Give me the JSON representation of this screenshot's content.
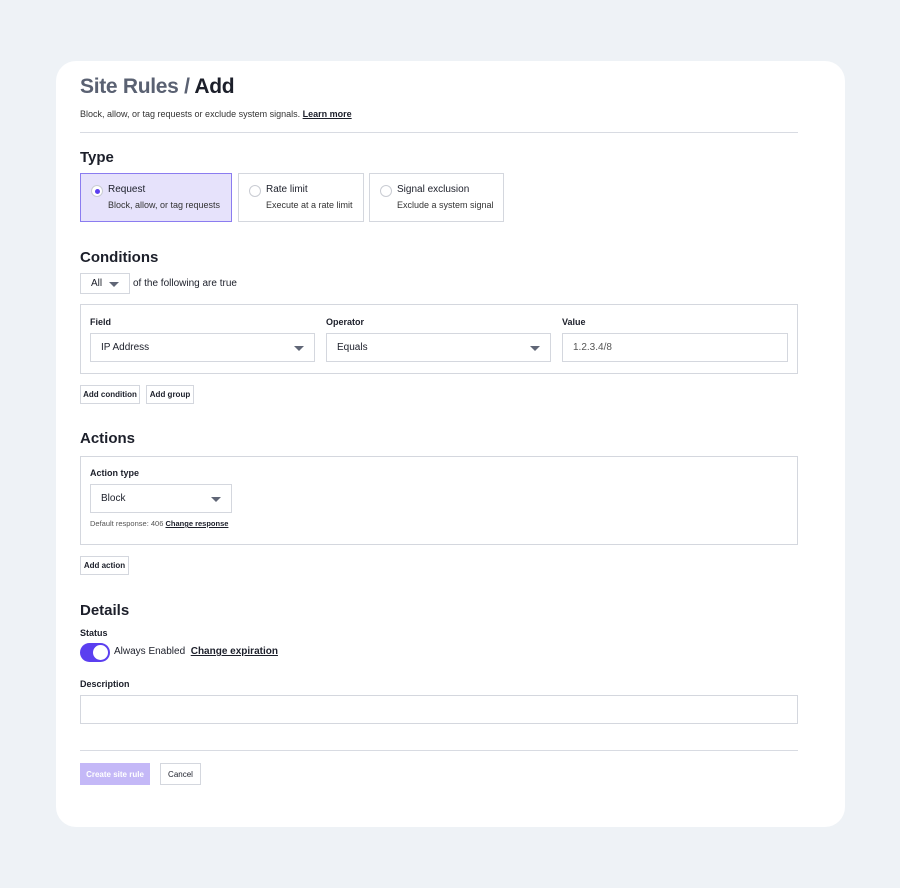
{
  "header": {
    "crumb": "Site Rules",
    "separator": " / ",
    "title": "Add",
    "subtitle": "Block, allow, or tag requests or exclude system signals.",
    "learn_more": "Learn more"
  },
  "type": {
    "heading": "Type",
    "options": [
      {
        "label": "Request",
        "desc": "Block, allow, or tag requests",
        "selected": true
      },
      {
        "label": "Rate limit",
        "desc": "Execute at a rate limit",
        "selected": false
      },
      {
        "label": "Signal exclusion",
        "desc": "Exclude a system signal",
        "selected": false
      }
    ]
  },
  "conditions": {
    "heading": "Conditions",
    "match": "All",
    "match_suffix": "of the following are true",
    "field_label": "Field",
    "field_value": "IP Address",
    "operator_label": "Operator",
    "operator_value": "Equals",
    "value_label": "Value",
    "value_value": "1.2.3.4/8",
    "add_condition": "Add condition",
    "add_group": "Add group"
  },
  "actions": {
    "heading": "Actions",
    "action_type_label": "Action type",
    "action_type_value": "Block",
    "default_response": "Default response: 406",
    "change_response": "Change response",
    "add_action": "Add action"
  },
  "details": {
    "heading": "Details",
    "status_label": "Status",
    "status_enabled": true,
    "status_text": "Always Enabled",
    "change_expiration": "Change expiration",
    "description_label": "Description",
    "description_value": ""
  },
  "footer": {
    "create": "Create site rule",
    "cancel": "Cancel"
  },
  "colors": {
    "accent": "#5b3ff0",
    "selected_bg": "#e6e2fb",
    "disabled_button": "#c4b8f7"
  }
}
